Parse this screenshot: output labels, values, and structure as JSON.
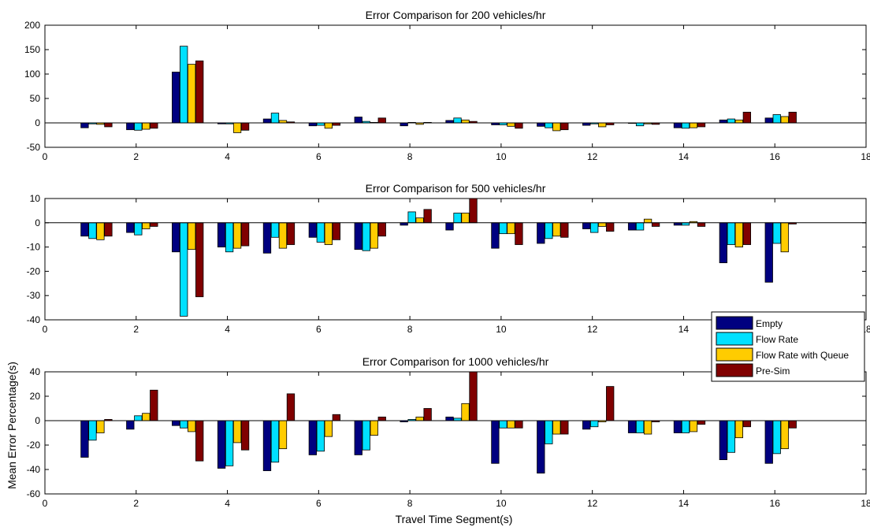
{
  "figure": {
    "ylabel": "Mean Error Percentage(s)",
    "xlabel": "Travel Time Segment(s)"
  },
  "legend": {
    "placement": "overlapping lower-right of second panel",
    "entries": [
      {
        "label": "Empty",
        "color": "#000080"
      },
      {
        "label": "Flow Rate",
        "color": "#00e0ff"
      },
      {
        "label": "Flow Rate with Queue",
        "color": "#ffcc00"
      },
      {
        "label": "Pre-Sim",
        "color": "#800000"
      }
    ]
  },
  "chart_data": [
    {
      "type": "bar",
      "title": "Error Comparison for 200 vehicles/hr",
      "xlim": [
        0,
        18
      ],
      "ylim": [
        -50,
        200
      ],
      "xticks": [
        0,
        2,
        4,
        6,
        8,
        10,
        12,
        14,
        16,
        18
      ],
      "yticks": [
        -50,
        0,
        50,
        100,
        150,
        200
      ],
      "categories": [
        1,
        2,
        3,
        4,
        5,
        6,
        7,
        8,
        9,
        10,
        11,
        12,
        13,
        14,
        15,
        16
      ],
      "series": [
        {
          "name": "Empty",
          "color": "#000080",
          "values": [
            -10,
            -14,
            104,
            -2,
            8,
            -6,
            12,
            -6,
            5,
            -4,
            -7,
            -5,
            -1,
            -10,
            6,
            10
          ]
        },
        {
          "name": "Flow Rate",
          "color": "#00e0ff",
          "values": [
            -2,
            -15,
            157,
            -2,
            20,
            -5,
            3,
            1,
            10,
            -4,
            -10,
            -2,
            -6,
            -11,
            8,
            17
          ]
        },
        {
          "name": "Flow Rate with Queue",
          "color": "#ffcc00",
          "values": [
            -3,
            -13,
            120,
            -20,
            5,
            -11,
            1,
            -3,
            6,
            -7,
            -16,
            -8,
            -2,
            -10,
            6,
            13
          ]
        },
        {
          "name": "Pre-Sim",
          "color": "#800000",
          "values": [
            -8,
            -11,
            127,
            -15,
            2,
            -5,
            10,
            1,
            3,
            -11,
            -14,
            -4,
            -3,
            -8,
            22,
            22
          ]
        }
      ]
    },
    {
      "type": "bar",
      "title": "Error Comparison for 500 vehicles/hr",
      "xlim": [
        0,
        18
      ],
      "ylim": [
        -40,
        10
      ],
      "xticks": [
        0,
        2,
        4,
        6,
        8,
        10,
        12,
        14,
        16,
        18
      ],
      "yticks": [
        -40,
        -30,
        -20,
        -10,
        0,
        10
      ],
      "categories": [
        1,
        2,
        3,
        4,
        5,
        6,
        7,
        8,
        9,
        10,
        11,
        12,
        13,
        14,
        15,
        16
      ],
      "series": [
        {
          "name": "Empty",
          "color": "#000080",
          "values": [
            -5.5,
            -4,
            -12,
            -10,
            -12.5,
            -6,
            -11,
            -1,
            -3,
            -10.5,
            -8.5,
            -2.5,
            -3,
            -1,
            -16.5,
            -24.5
          ]
        },
        {
          "name": "Flow Rate",
          "color": "#00e0ff",
          "values": [
            -6.5,
            -5,
            -38.5,
            -12,
            -6,
            -8,
            -11.5,
            4.5,
            4,
            -4.5,
            -6.5,
            -4,
            -3,
            -1,
            -9,
            -8.5
          ]
        },
        {
          "name": "Flow Rate with Queue",
          "color": "#ffcc00",
          "values": [
            -7,
            -2.5,
            -11,
            -10.5,
            -10.5,
            -9,
            -10.5,
            2,
            4,
            -4.5,
            -5.5,
            -1.5,
            1.5,
            0.5,
            -10,
            -12
          ]
        },
        {
          "name": "Pre-Sim",
          "color": "#800000",
          "values": [
            -5.5,
            -1.5,
            -30.5,
            -9.5,
            -9,
            -7,
            -5.5,
            5.5,
            10,
            -9,
            -6,
            -3.5,
            -1.5,
            -1.5,
            -9,
            -0.5
          ]
        }
      ]
    },
    {
      "type": "bar",
      "title": "Error Comparison for 1000 vehicles/hr",
      "xlim": [
        0,
        18
      ],
      "ylim": [
        -60,
        40
      ],
      "xticks": [
        0,
        2,
        4,
        6,
        8,
        10,
        12,
        14,
        16,
        18
      ],
      "yticks": [
        -60,
        -40,
        -20,
        0,
        20,
        40
      ],
      "categories": [
        1,
        2,
        3,
        4,
        5,
        6,
        7,
        8,
        9,
        10,
        11,
        12,
        13,
        14,
        15,
        16
      ],
      "series": [
        {
          "name": "Empty",
          "color": "#000080",
          "values": [
            -30,
            -7,
            -4,
            -39,
            -41,
            -28,
            -28,
            -1,
            3,
            -35,
            -43,
            -7,
            -10,
            -10,
            -32,
            -35
          ]
        },
        {
          "name": "Flow Rate",
          "color": "#00e0ff",
          "values": [
            -16,
            4,
            -6,
            -37,
            -34,
            -25,
            -24,
            1,
            2,
            -6,
            -19,
            -5,
            -10,
            -10,
            -26,
            -27
          ]
        },
        {
          "name": "Flow Rate with Queue",
          "color": "#ffcc00",
          "values": [
            -10,
            6,
            -9,
            -18,
            -23,
            -13,
            -12,
            3,
            14,
            -6,
            -11,
            -1,
            -11,
            -9,
            -14,
            -23
          ]
        },
        {
          "name": "Pre-Sim",
          "color": "#800000",
          "values": [
            1,
            25,
            -33,
            -24,
            22,
            5,
            3,
            10,
            40,
            -6,
            -11,
            28,
            -1,
            -3,
            -5,
            -6
          ]
        }
      ]
    }
  ]
}
